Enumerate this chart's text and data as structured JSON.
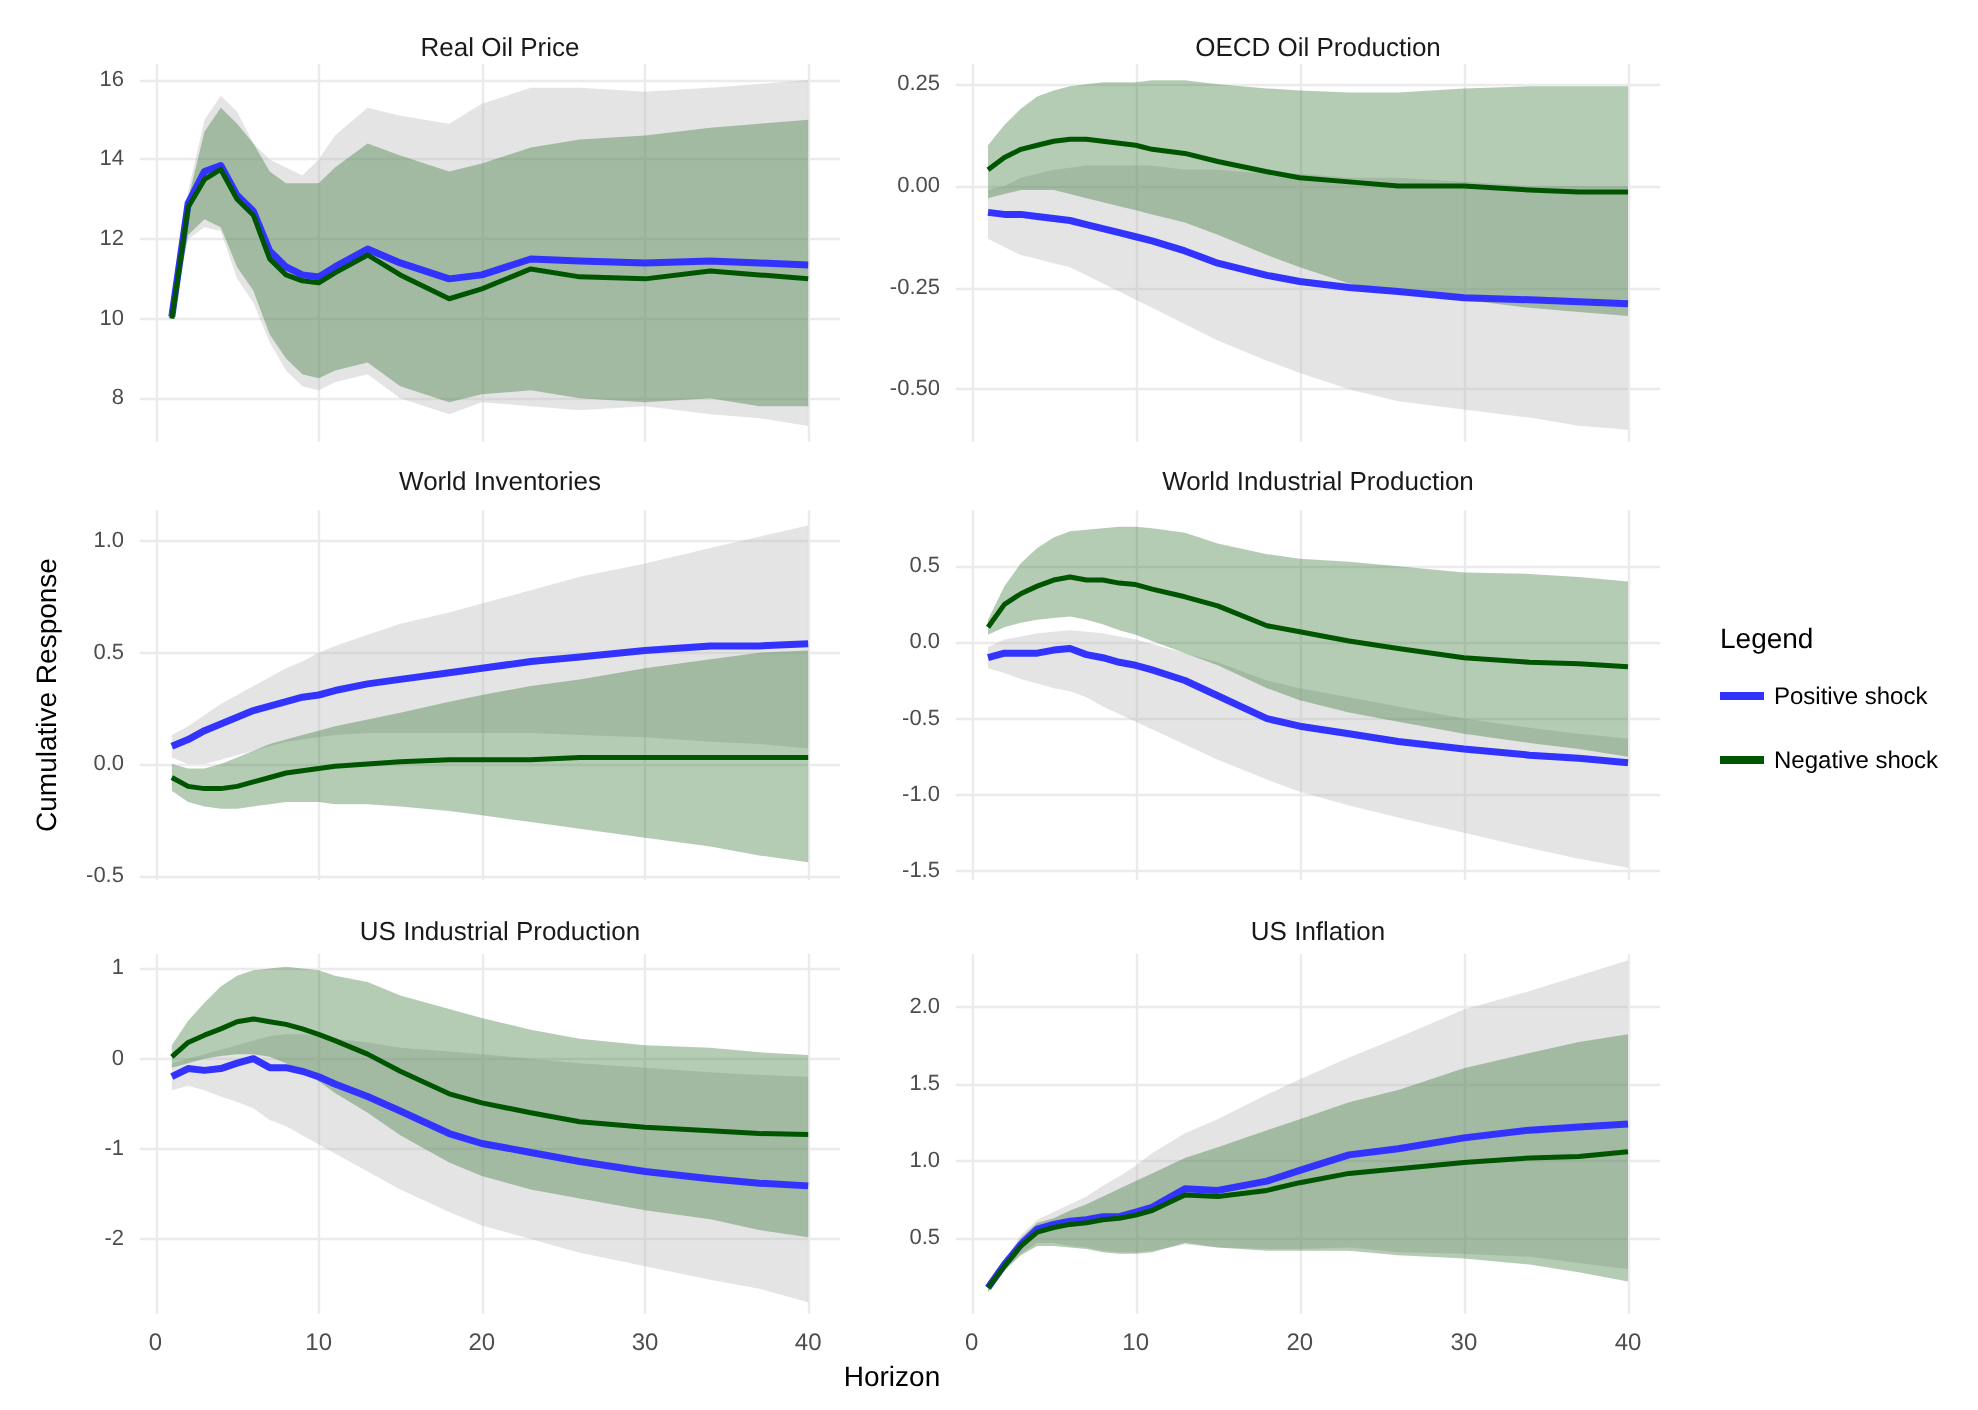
{
  "chart_data": [
    {
      "type": "line",
      "title": "Real Oil Price",
      "x": [
        1,
        2,
        3,
        4,
        5,
        6,
        7,
        8,
        9,
        10,
        11,
        13,
        15,
        18,
        20,
        23,
        26,
        30,
        34,
        37,
        40
      ],
      "xlim": [
        -0.95,
        41.95
      ],
      "xticks": [
        0,
        10,
        20,
        30,
        40
      ],
      "ylim": [
        6.9,
        16.4
      ],
      "yticks": [
        8,
        10,
        12,
        14,
        16
      ],
      "grid": true,
      "tick_labels": "y",
      "legend": false,
      "series": [
        {
          "color": "#3333ff",
          "values": [
            10.05,
            12.9,
            13.7,
            13.85,
            13.1,
            12.7,
            11.7,
            11.3,
            11.1,
            11.05,
            11.3,
            11.75,
            11.4,
            11.0,
            11.1,
            11.5,
            11.45,
            11.4,
            11.45,
            11.4,
            11.35
          ],
          "lower": [
            10.0,
            12.0,
            12.3,
            12.2,
            11.0,
            10.4,
            9.4,
            8.7,
            8.3,
            8.2,
            8.4,
            8.6,
            8.0,
            7.6,
            7.9,
            7.8,
            7.7,
            7.8,
            7.6,
            7.5,
            7.3
          ],
          "upper": [
            10.0,
            13.2,
            15.0,
            15.6,
            15.2,
            14.4,
            14.0,
            13.8,
            13.6,
            14.0,
            14.6,
            15.3,
            15.1,
            14.9,
            15.4,
            15.8,
            15.8,
            15.7,
            15.8,
            15.9,
            16.0
          ]
        },
        {
          "color": "#005500",
          "values": [
            10.0,
            12.8,
            13.5,
            13.75,
            13.0,
            12.6,
            11.5,
            11.1,
            10.95,
            10.9,
            11.15,
            11.6,
            11.1,
            10.5,
            10.75,
            11.25,
            11.05,
            11.0,
            11.2,
            11.1,
            11.0
          ],
          "lower": [
            10.0,
            12.1,
            12.5,
            12.3,
            11.3,
            10.7,
            9.6,
            9.0,
            8.6,
            8.5,
            8.7,
            8.9,
            8.3,
            7.9,
            8.1,
            8.2,
            8.0,
            7.9,
            8.0,
            7.8,
            7.8
          ],
          "upper": [
            10.0,
            13.0,
            14.7,
            15.3,
            14.9,
            14.4,
            13.7,
            13.4,
            13.4,
            13.4,
            13.8,
            14.4,
            14.1,
            13.7,
            13.9,
            14.3,
            14.5,
            14.6,
            14.8,
            14.9,
            15.0
          ]
        }
      ]
    },
    {
      "type": "line",
      "title": "OECD Oil Production",
      "x": [
        1,
        2,
        3,
        4,
        5,
        6,
        7,
        8,
        9,
        10,
        11,
        13,
        15,
        18,
        20,
        23,
        26,
        30,
        34,
        37,
        40
      ],
      "xlim": [
        -0.95,
        41.95
      ],
      "xticks": [
        0,
        10,
        20,
        30,
        40
      ],
      "ylim": [
        -0.63,
        0.3
      ],
      "yticks": [
        0.25,
        {
          "value": 0,
          "label": "0.00"
        },
        -0.25,
        {
          "value": -0.5,
          "label": "-0.50"
        }
      ],
      "grid": true,
      "tick_labels": "y",
      "legend": false,
      "series": [
        {
          "color": "#3333ff",
          "values": [
            -0.065,
            -0.07,
            -0.07,
            -0.075,
            -0.08,
            -0.085,
            -0.095,
            -0.105,
            -0.115,
            -0.125,
            -0.135,
            -0.16,
            -0.19,
            -0.22,
            -0.235,
            -0.25,
            -0.26,
            -0.275,
            -0.28,
            -0.285,
            -0.29
          ],
          "lower": [
            -0.13,
            -0.15,
            -0.17,
            -0.18,
            -0.19,
            -0.2,
            -0.22,
            -0.24,
            -0.26,
            -0.28,
            -0.3,
            -0.34,
            -0.38,
            -0.43,
            -0.46,
            -0.5,
            -0.53,
            -0.55,
            -0.57,
            -0.59,
            -0.6
          ],
          "upper": [
            -0.01,
            0.0,
            0.02,
            0.03,
            0.04,
            0.045,
            0.05,
            0.05,
            0.05,
            0.05,
            0.05,
            0.04,
            0.04,
            0.03,
            0.03,
            0.02,
            0.02,
            0.01,
            0.0,
            0.0,
            0.0
          ]
        },
        {
          "color": "#005500",
          "values": [
            0.04,
            0.07,
            0.09,
            0.1,
            0.11,
            0.115,
            0.115,
            0.11,
            0.105,
            0.1,
            0.09,
            0.08,
            0.06,
            0.035,
            0.02,
            0.01,
            0.0,
            0.0,
            -0.01,
            -0.015,
            -0.015
          ],
          "lower": [
            -0.03,
            -0.02,
            -0.01,
            -0.01,
            -0.01,
            -0.02,
            -0.03,
            -0.04,
            -0.05,
            -0.06,
            -0.07,
            -0.09,
            -0.12,
            -0.17,
            -0.2,
            -0.24,
            -0.26,
            -0.28,
            -0.3,
            -0.31,
            -0.32
          ],
          "upper": [
            0.1,
            0.15,
            0.19,
            0.22,
            0.235,
            0.245,
            0.25,
            0.255,
            0.255,
            0.255,
            0.26,
            0.26,
            0.25,
            0.24,
            0.235,
            0.23,
            0.23,
            0.24,
            0.245,
            0.245,
            0.245
          ]
        }
      ]
    },
    {
      "type": "line",
      "title": "World Inventories",
      "ylabel": "Cumulative Response",
      "x": [
        1,
        2,
        3,
        4,
        5,
        6,
        7,
        8,
        9,
        10,
        11,
        13,
        15,
        18,
        20,
        23,
        26,
        30,
        34,
        37,
        40
      ],
      "xlim": [
        -0.95,
        41.95
      ],
      "xticks": [
        0,
        10,
        20,
        30,
        40
      ],
      "ylim": [
        -0.52,
        1.14
      ],
      "yticks": [
        {
          "value": 1,
          "label": "1.0"
        },
        0.5,
        {
          "value": 0,
          "label": "0.0"
        },
        -0.5
      ],
      "grid": true,
      "tick_labels": "y",
      "legend": false,
      "series": [
        {
          "color": "#3333ff",
          "values": [
            0.08,
            0.11,
            0.15,
            0.18,
            0.21,
            0.24,
            0.26,
            0.28,
            0.3,
            0.31,
            0.33,
            0.36,
            0.38,
            0.41,
            0.43,
            0.46,
            0.48,
            0.51,
            0.53,
            0.53,
            0.54
          ],
          "lower": [
            0.03,
            0.0,
            0.0,
            0.02,
            0.04,
            0.06,
            0.08,
            0.1,
            0.11,
            0.12,
            0.13,
            0.14,
            0.14,
            0.14,
            0.14,
            0.14,
            0.13,
            0.12,
            0.1,
            0.09,
            0.07
          ],
          "upper": [
            0.13,
            0.17,
            0.22,
            0.27,
            0.31,
            0.35,
            0.39,
            0.43,
            0.46,
            0.5,
            0.53,
            0.58,
            0.63,
            0.68,
            0.72,
            0.78,
            0.84,
            0.9,
            0.97,
            1.02,
            1.07
          ]
        },
        {
          "color": "#005500",
          "values": [
            -0.06,
            -0.1,
            -0.11,
            -0.11,
            -0.1,
            -0.08,
            -0.06,
            -0.04,
            -0.03,
            -0.02,
            -0.01,
            0.0,
            0.01,
            0.02,
            0.02,
            0.02,
            0.03,
            0.03,
            0.03,
            0.03,
            0.03
          ],
          "lower": [
            -0.12,
            -0.17,
            -0.19,
            -0.2,
            -0.2,
            -0.19,
            -0.18,
            -0.17,
            -0.17,
            -0.17,
            -0.18,
            -0.18,
            -0.19,
            -0.21,
            -0.23,
            -0.26,
            -0.29,
            -0.33,
            -0.37,
            -0.41,
            -0.44
          ],
          "upper": [
            0.0,
            -0.02,
            -0.02,
            0.0,
            0.03,
            0.06,
            0.09,
            0.11,
            0.13,
            0.15,
            0.17,
            0.2,
            0.23,
            0.28,
            0.31,
            0.35,
            0.38,
            0.43,
            0.47,
            0.5,
            0.51
          ]
        }
      ]
    },
    {
      "type": "line",
      "title": "World Industrial Production",
      "legend_title": "Legend",
      "x": [
        1,
        2,
        3,
        4,
        5,
        6,
        7,
        8,
        9,
        10,
        11,
        13,
        15,
        18,
        20,
        23,
        26,
        30,
        34,
        37,
        40
      ],
      "xlim": [
        -0.95,
        41.95
      ],
      "xticks": [
        0,
        10,
        20,
        30,
        40
      ],
      "ylim": [
        -1.56,
        0.87
      ],
      "yticks": [
        0.5,
        {
          "value": 0,
          "label": "0.0"
        },
        -0.5,
        {
          "value": -1,
          "label": "-1.0"
        },
        -1.5
      ],
      "grid": true,
      "tick_labels": "y",
      "legend": "right",
      "series": [
        {
          "name": "Positive shock",
          "color": "#3333ff",
          "values": [
            -0.1,
            -0.07,
            -0.07,
            -0.07,
            -0.05,
            -0.04,
            -0.08,
            -0.1,
            -0.13,
            -0.15,
            -0.18,
            -0.25,
            -0.35,
            -0.5,
            -0.55,
            -0.6,
            -0.65,
            -0.7,
            -0.74,
            -0.76,
            -0.79
          ],
          "lower": [
            -0.17,
            -0.2,
            -0.24,
            -0.27,
            -0.3,
            -0.32,
            -0.36,
            -0.42,
            -0.47,
            -0.52,
            -0.57,
            -0.67,
            -0.77,
            -0.9,
            -0.98,
            -1.07,
            -1.15,
            -1.25,
            -1.35,
            -1.42,
            -1.48
          ],
          "upper": [
            -0.03,
            0.02,
            0.04,
            0.06,
            0.07,
            0.08,
            0.07,
            0.06,
            0.04,
            0.02,
            -0.01,
            -0.07,
            -0.13,
            -0.25,
            -0.3,
            -0.36,
            -0.42,
            -0.5,
            -0.56,
            -0.6,
            -0.63
          ]
        },
        {
          "name": "Negative shock",
          "color": "#005500",
          "values": [
            0.1,
            0.25,
            0.32,
            0.37,
            0.41,
            0.43,
            0.41,
            0.41,
            0.39,
            0.38,
            0.35,
            0.3,
            0.24,
            0.11,
            0.07,
            0.01,
            -0.04,
            -0.1,
            -0.13,
            -0.14,
            -0.16
          ],
          "lower": [
            0.05,
            0.1,
            0.13,
            0.15,
            0.16,
            0.17,
            0.15,
            0.12,
            0.08,
            0.05,
            0.01,
            -0.07,
            -0.15,
            -0.3,
            -0.38,
            -0.46,
            -0.52,
            -0.6,
            -0.66,
            -0.7,
            -0.75
          ],
          "upper": [
            0.15,
            0.37,
            0.52,
            0.62,
            0.69,
            0.73,
            0.74,
            0.75,
            0.76,
            0.76,
            0.75,
            0.72,
            0.65,
            0.58,
            0.55,
            0.53,
            0.5,
            0.46,
            0.45,
            0.43,
            0.4
          ]
        }
      ]
    },
    {
      "type": "line",
      "title": "US Industrial Production",
      "xlabel": "Horizon",
      "x": [
        1,
        2,
        3,
        4,
        5,
        6,
        7,
        8,
        9,
        10,
        11,
        13,
        15,
        18,
        20,
        23,
        26,
        30,
        34,
        37,
        40
      ],
      "xlim": [
        -0.95,
        41.95
      ],
      "xticks": [
        0,
        10,
        20,
        30,
        40
      ],
      "ylim": [
        -2.83,
        1.16
      ],
      "yticks": [
        1,
        0,
        -1,
        -2
      ],
      "grid": true,
      "legend": false,
      "series": [
        {
          "color": "#3333ff",
          "values": [
            -0.2,
            -0.11,
            -0.13,
            -0.11,
            -0.05,
            0.0,
            -0.1,
            -0.1,
            -0.14,
            -0.2,
            -0.28,
            -0.42,
            -0.58,
            -0.83,
            -0.94,
            -1.04,
            -1.14,
            -1.25,
            -1.33,
            -1.38,
            -1.41
          ],
          "lower": [
            -0.35,
            -0.3,
            -0.35,
            -0.42,
            -0.48,
            -0.55,
            -0.68,
            -0.75,
            -0.85,
            -0.95,
            -1.05,
            -1.25,
            -1.45,
            -1.7,
            -1.85,
            -2.0,
            -2.15,
            -2.3,
            -2.45,
            -2.55,
            -2.7
          ],
          "upper": [
            -0.05,
            0.0,
            0.05,
            0.1,
            0.15,
            0.2,
            0.25,
            0.27,
            0.27,
            0.25,
            0.22,
            0.18,
            0.12,
            0.08,
            0.05,
            0.0,
            -0.05,
            -0.1,
            -0.15,
            -0.18,
            -0.2
          ]
        },
        {
          "color": "#005500",
          "values": [
            0.02,
            0.18,
            0.26,
            0.33,
            0.41,
            0.44,
            0.41,
            0.38,
            0.33,
            0.27,
            0.2,
            0.05,
            -0.14,
            -0.39,
            -0.49,
            -0.6,
            -0.7,
            -0.76,
            -0.8,
            -0.83,
            -0.84
          ],
          "lower": [
            -0.1,
            -0.05,
            0.0,
            0.03,
            0.05,
            0.05,
            0.02,
            -0.05,
            -0.15,
            -0.25,
            -0.38,
            -0.6,
            -0.85,
            -1.15,
            -1.3,
            -1.45,
            -1.55,
            -1.68,
            -1.78,
            -1.9,
            -1.98
          ],
          "upper": [
            0.15,
            0.42,
            0.62,
            0.8,
            0.92,
            0.98,
            1.0,
            1.02,
            1.0,
            0.98,
            0.92,
            0.85,
            0.7,
            0.55,
            0.45,
            0.32,
            0.22,
            0.15,
            0.12,
            0.07,
            0.04
          ]
        }
      ]
    },
    {
      "type": "line",
      "title": "US Inflation",
      "x": [
        1,
        2,
        3,
        4,
        5,
        6,
        7,
        8,
        9,
        10,
        11,
        13,
        15,
        18,
        20,
        23,
        26,
        30,
        34,
        37,
        40
      ],
      "xlim": [
        -0.95,
        41.95
      ],
      "xticks": [
        0,
        10,
        20,
        30,
        40
      ],
      "ylim": [
        0.01,
        2.34
      ],
      "yticks": [
        0.5,
        {
          "value": 1,
          "label": "1.0"
        },
        1.5,
        {
          "value": 2,
          "label": "2.0"
        }
      ],
      "grid": true,
      "legend": false,
      "series": [
        {
          "color": "#3333ff",
          "values": [
            0.18,
            0.33,
            0.46,
            0.56,
            0.59,
            0.61,
            0.62,
            0.64,
            0.64,
            0.67,
            0.7,
            0.82,
            0.81,
            0.87,
            0.94,
            1.04,
            1.08,
            1.15,
            1.2,
            1.22,
            1.24
          ],
          "lower": [
            0.15,
            0.3,
            0.4,
            0.47,
            0.47,
            0.45,
            0.44,
            0.42,
            0.41,
            0.41,
            0.42,
            0.46,
            0.44,
            0.43,
            0.43,
            0.44,
            0.41,
            0.4,
            0.38,
            0.34,
            0.3
          ],
          "upper": [
            0.2,
            0.36,
            0.52,
            0.62,
            0.67,
            0.72,
            0.77,
            0.84,
            0.9,
            0.97,
            1.05,
            1.18,
            1.27,
            1.43,
            1.53,
            1.67,
            1.8,
            1.98,
            2.1,
            2.2,
            2.3
          ]
        },
        {
          "color": "#005500",
          "values": [
            0.18,
            0.32,
            0.45,
            0.54,
            0.57,
            0.59,
            0.6,
            0.62,
            0.63,
            0.65,
            0.68,
            0.78,
            0.77,
            0.81,
            0.86,
            0.92,
            0.95,
            0.99,
            1.02,
            1.03,
            1.06
          ],
          "lower": [
            0.15,
            0.29,
            0.39,
            0.45,
            0.45,
            0.44,
            0.43,
            0.41,
            0.4,
            0.4,
            0.41,
            0.47,
            0.44,
            0.42,
            0.42,
            0.42,
            0.39,
            0.37,
            0.33,
            0.28,
            0.22
          ],
          "upper": [
            0.2,
            0.35,
            0.5,
            0.6,
            0.63,
            0.68,
            0.72,
            0.77,
            0.82,
            0.87,
            0.92,
            1.02,
            1.09,
            1.2,
            1.27,
            1.38,
            1.46,
            1.6,
            1.7,
            1.77,
            1.82
          ]
        }
      ]
    }
  ]
}
